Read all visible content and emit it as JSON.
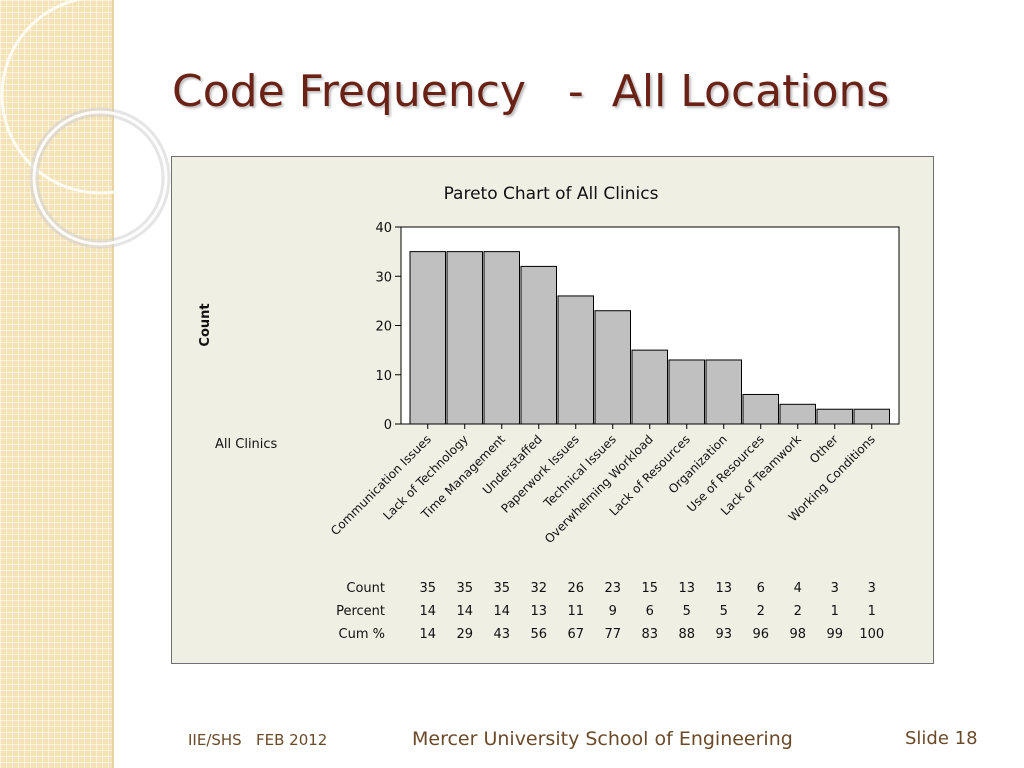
{
  "slide": {
    "title": "Code Frequency   -  All Locations",
    "footer_left": "IIE/SHS   FEB 2012",
    "footer_center": "Mercer University School of Engineering",
    "footer_right": "Slide 18"
  },
  "chart_data": {
    "type": "bar",
    "title": "Pareto Chart of All Clinics",
    "ylabel": "Count",
    "group_label": "All Clinics",
    "ylim": [
      0,
      40
    ],
    "yticks": [
      0,
      10,
      20,
      30,
      40
    ],
    "categories": [
      "Communication Issues",
      "Lack of Technology",
      "Time Management",
      "Understaffed",
      "Paperwork Issues",
      "Technical Issues",
      "Overwhelming Workload",
      "Lack of Resources",
      "Organization",
      "Use of Resources",
      "Lack of Teamwork",
      "Other",
      "Working Conditions"
    ],
    "values": [
      35,
      35,
      35,
      32,
      26,
      23,
      15,
      13,
      13,
      6,
      4,
      3,
      3
    ],
    "bar_color": "#c0c0c0",
    "table": {
      "rows": [
        {
          "label": "Count",
          "values": [
            "35",
            "35",
            "35",
            "32",
            "26",
            "23",
            "15",
            "13",
            "13",
            "6",
            "4",
            "3",
            "3"
          ]
        },
        {
          "label": "Percent",
          "values": [
            "14",
            "14",
            "14",
            "13",
            "11",
            "9",
            "6",
            "5",
            "5",
            "2",
            "2",
            "1",
            "1"
          ]
        },
        {
          "label": "Cum %",
          "values": [
            "14",
            "29",
            "43",
            "56",
            "67",
            "77",
            "83",
            "88",
            "93",
            "96",
            "98",
            "99",
            "100"
          ]
        }
      ]
    }
  }
}
